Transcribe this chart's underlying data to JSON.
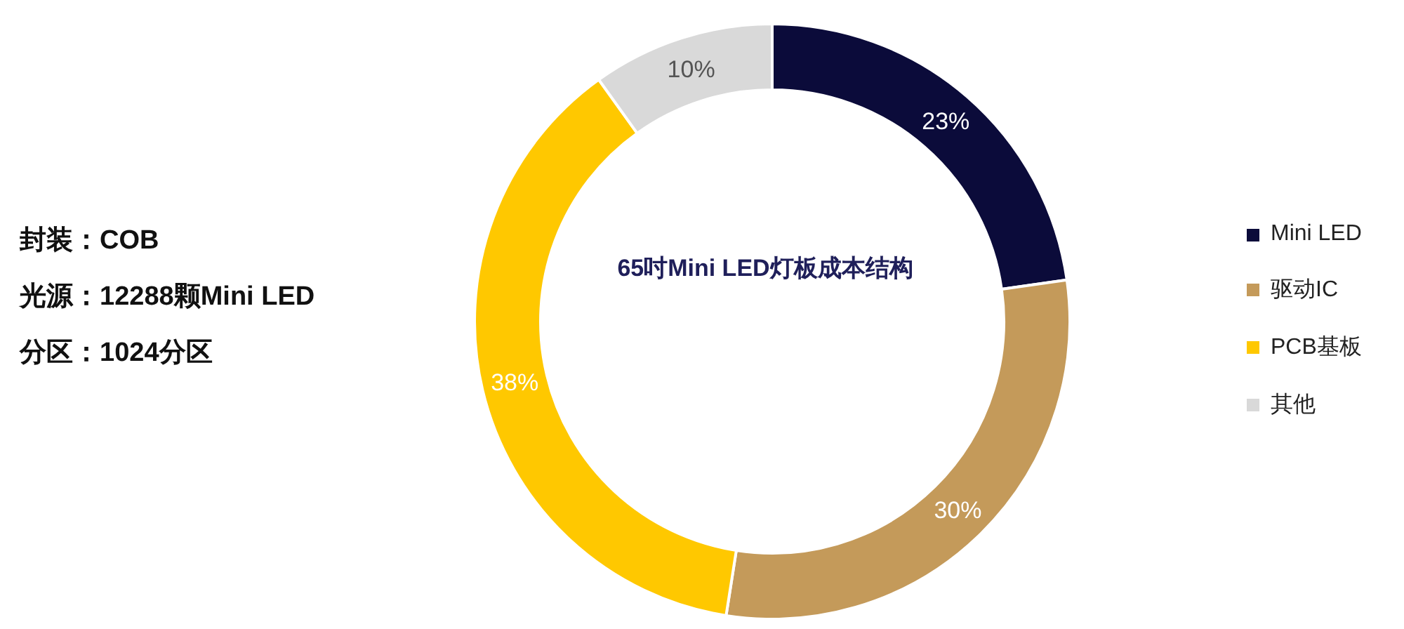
{
  "chart_data": {
    "type": "donut",
    "title": "65吋Mini LED灯板成本结构",
    "categories": [
      "Mini LED",
      "驱动IC",
      "PCB基板",
      "其他"
    ],
    "values": [
      23,
      30,
      38,
      10
    ],
    "value_labels": [
      "23%",
      "30%",
      "38%",
      "10%"
    ],
    "colors": [
      "#0b0b3a",
      "#c49a5a",
      "#ffc800",
      "#d9d9d9"
    ],
    "legend": "right",
    "annotations": [
      "封装：COB",
      "光源：12288颗Mini LED",
      "分区：1024分区"
    ]
  }
}
